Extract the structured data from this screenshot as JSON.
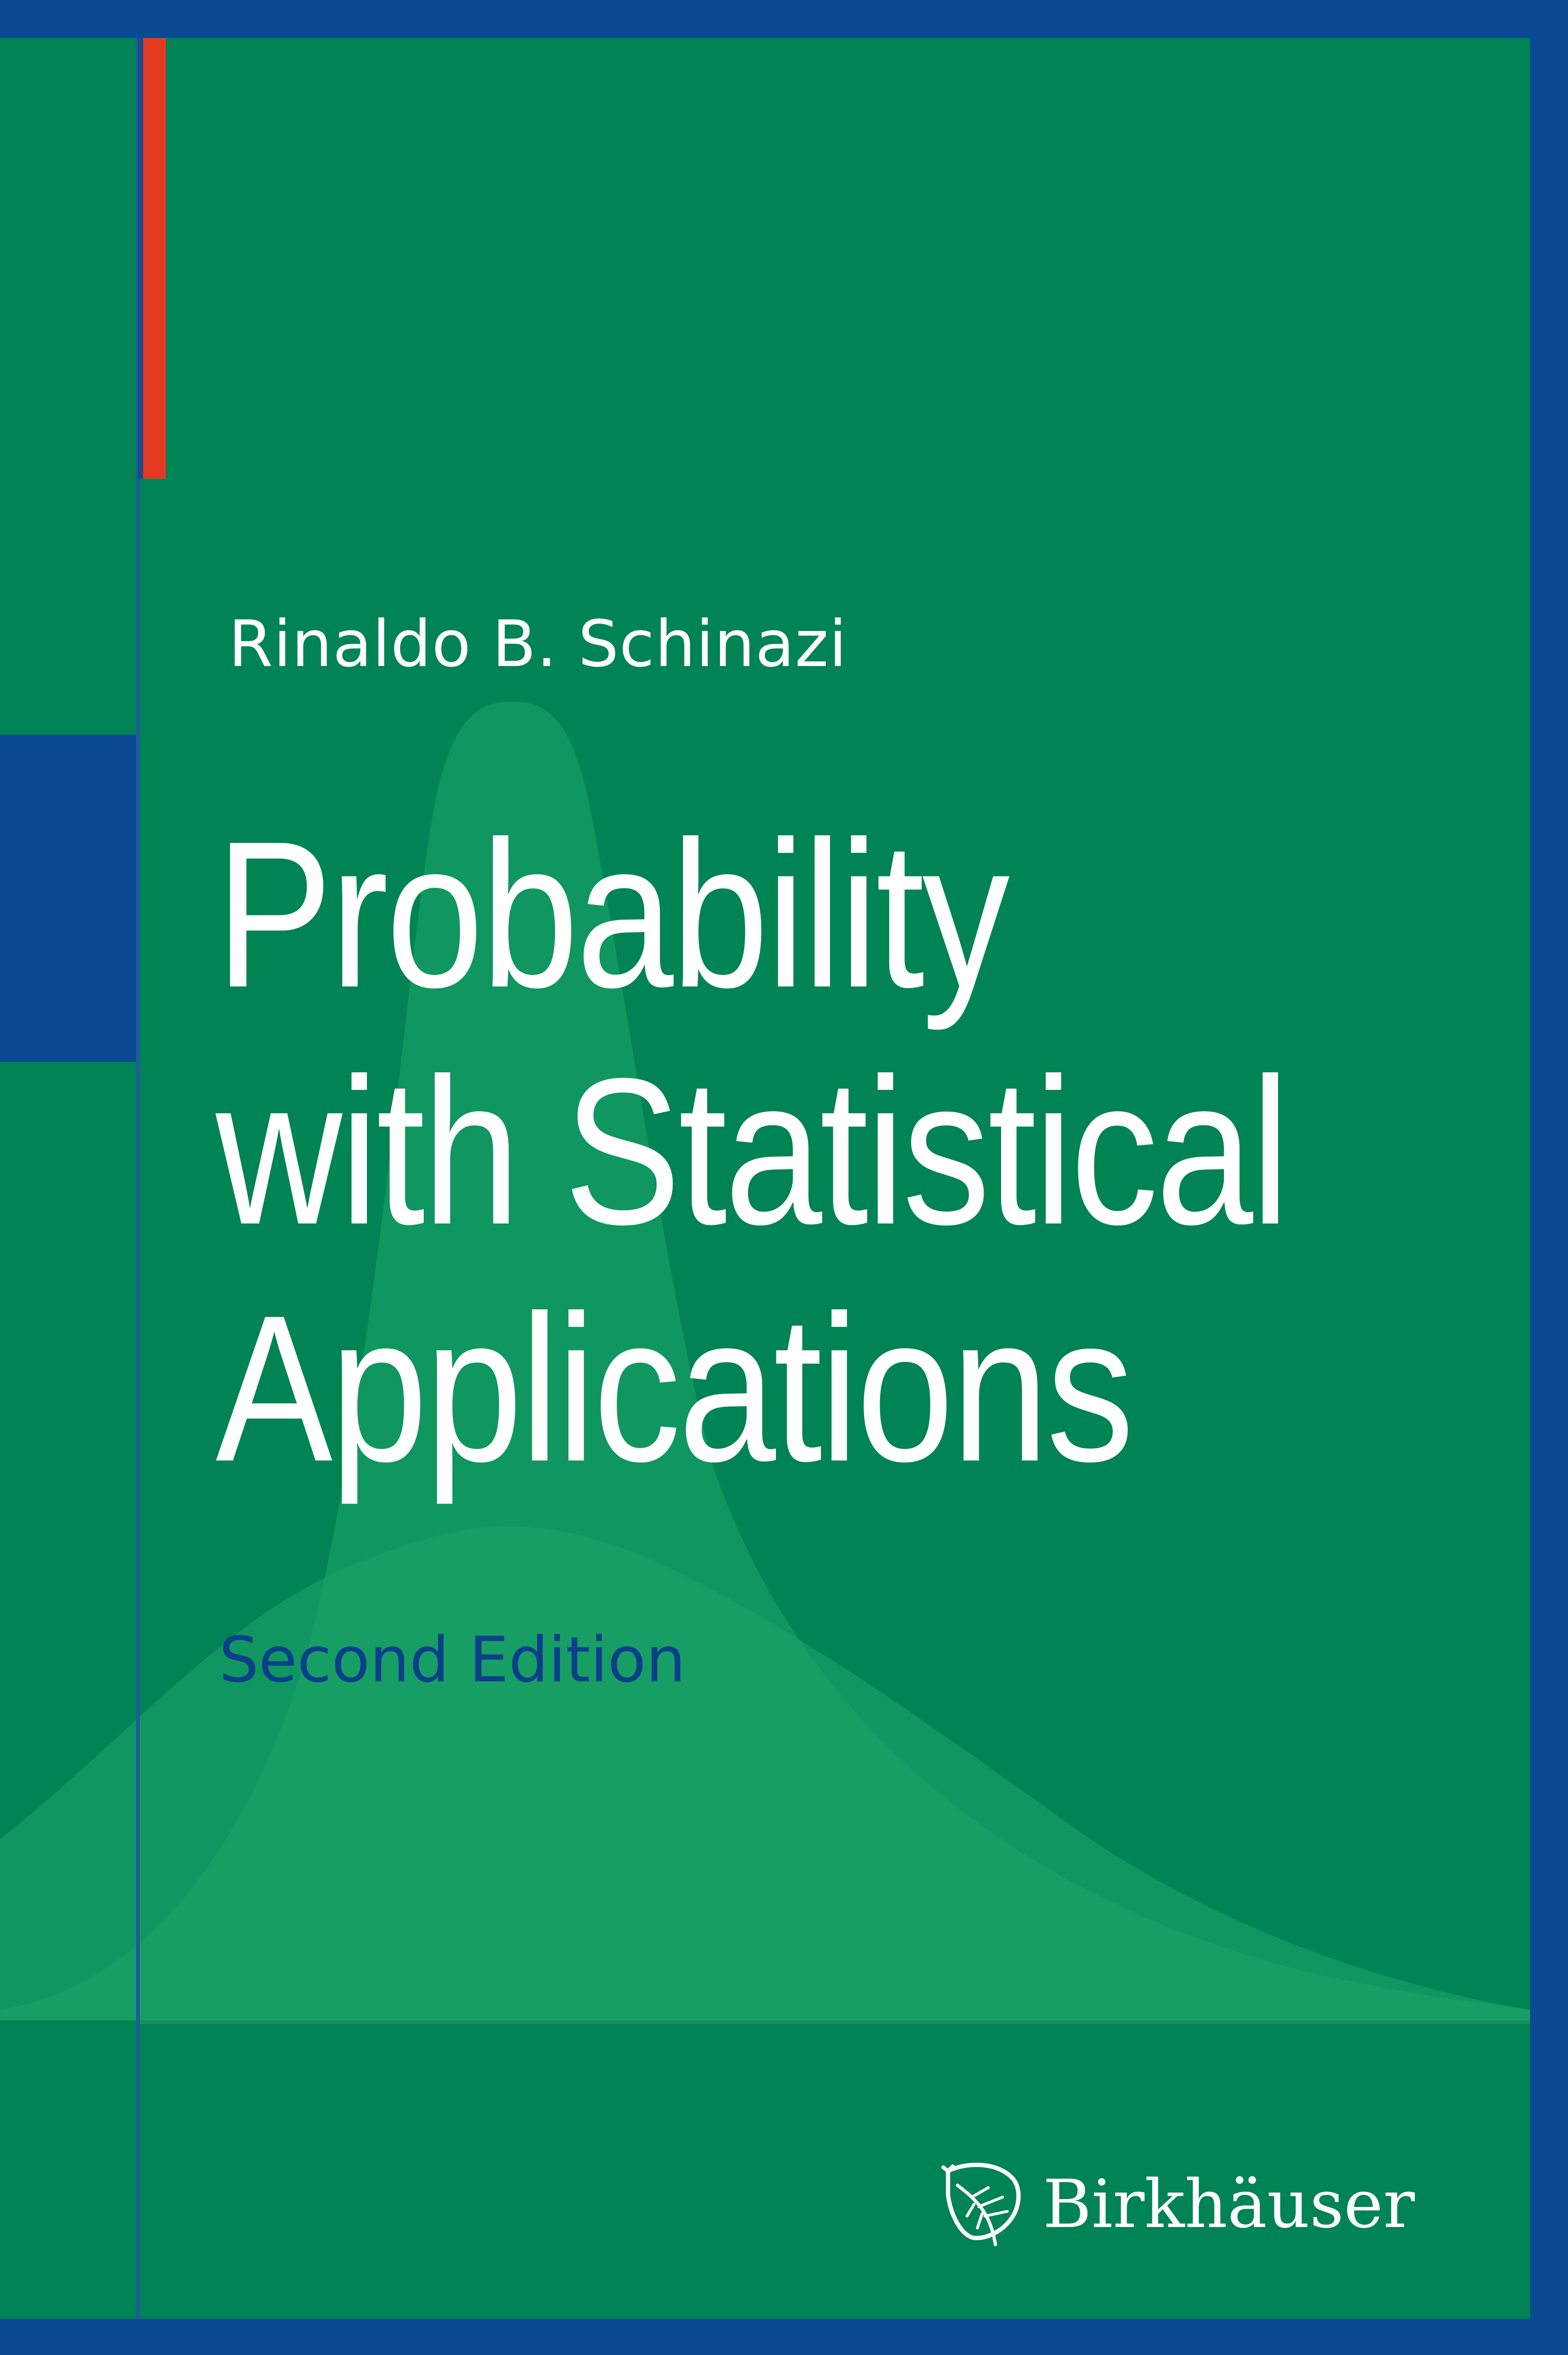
{
  "cover": {
    "author": "Rinaldo B. Schinazi",
    "title_lines": [
      "Probability",
      "with Statistical",
      "Applications"
    ],
    "edition": "Second Edition",
    "publisher": "Birkhäuser",
    "logo_icon": "leaf-icon"
  },
  "colors": {
    "frame": "#0a4a93",
    "background": "#008355",
    "curve_light": "#1ea66a",
    "accent_red": "#e33b21",
    "edition_text": "#0b3f8a",
    "text": "#ffffff"
  }
}
